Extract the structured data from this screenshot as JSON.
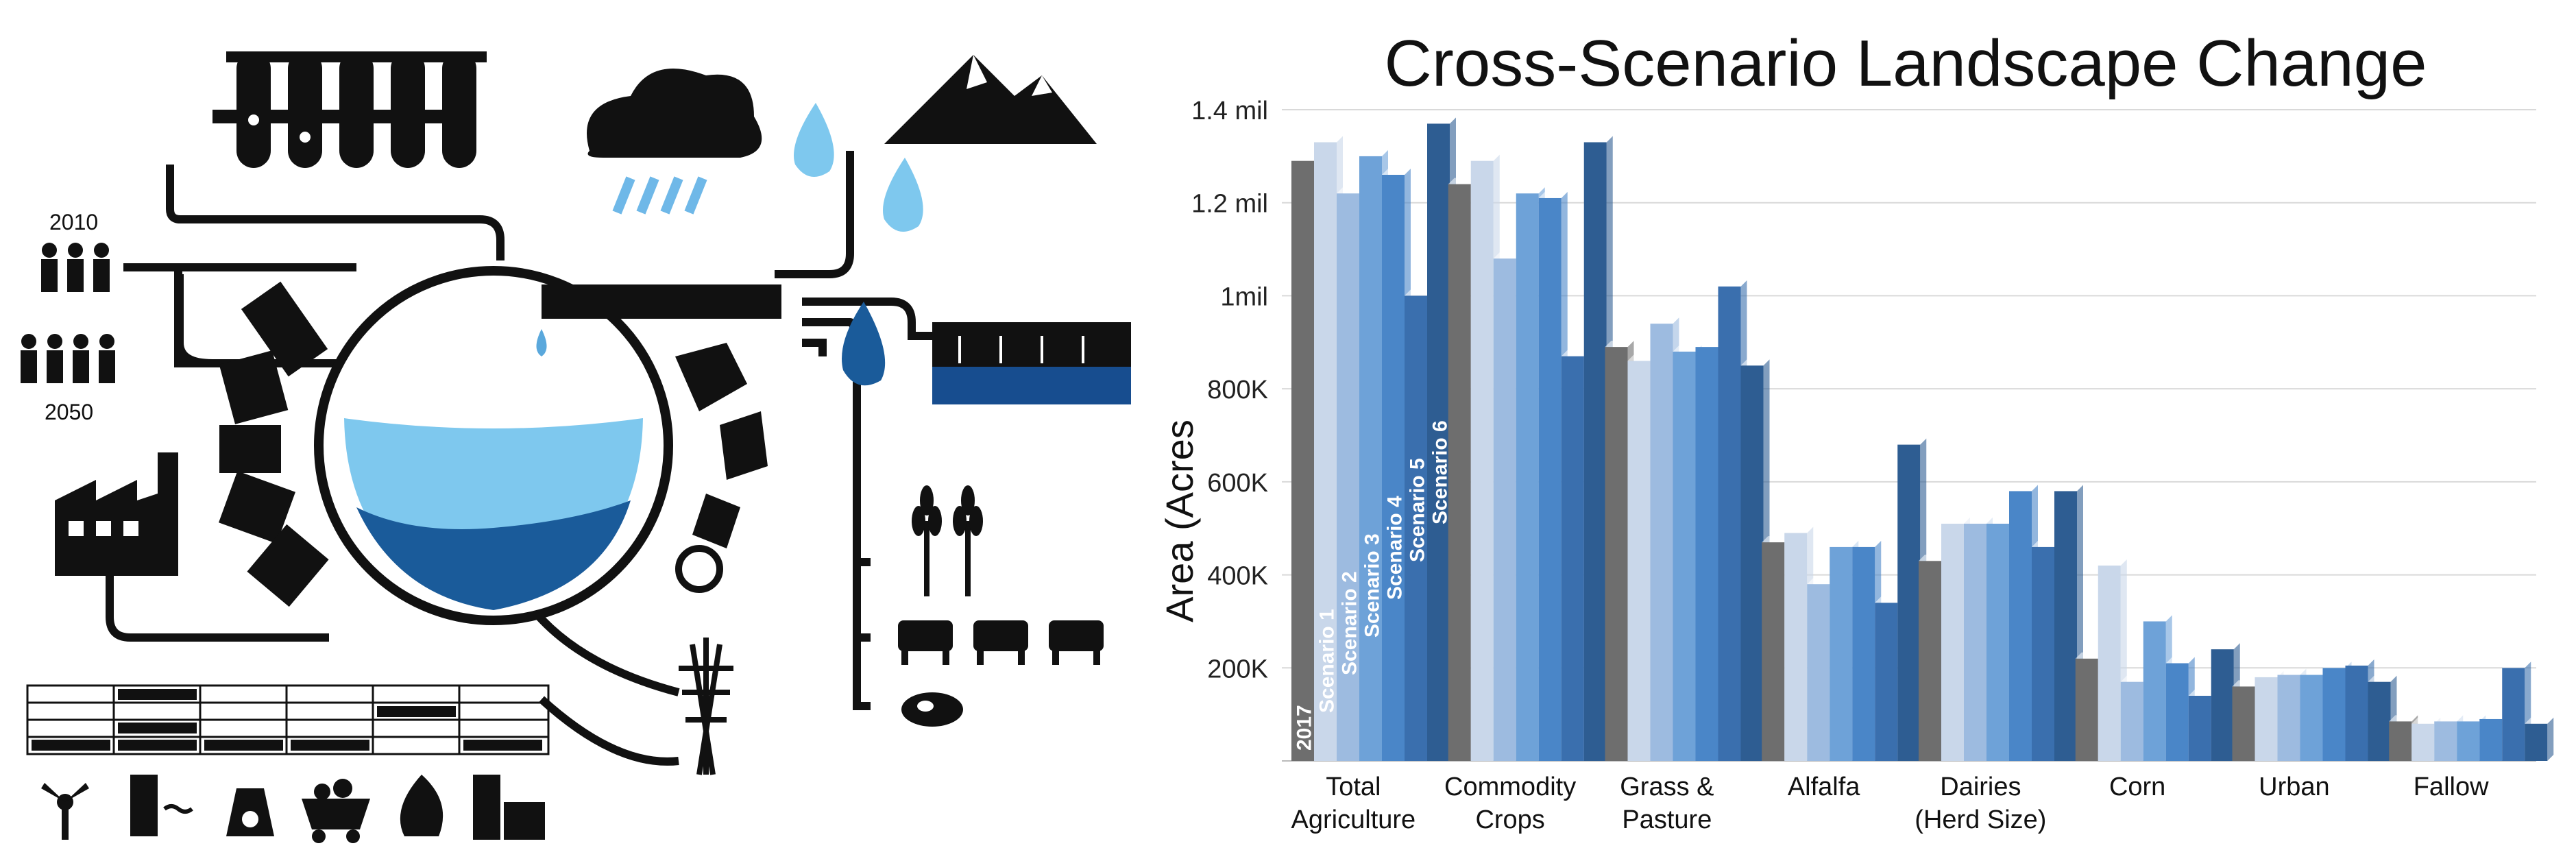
{
  "infographic": {
    "year_start": "2010",
    "year_end": "2050"
  },
  "chart_data": {
    "type": "bar",
    "title": "Cross-Scenario Landscape Change",
    "ylabel": "Area (Acres",
    "xlabel": "",
    "ylim": [
      0,
      1400000
    ],
    "y_ticks": [
      200000,
      400000,
      600000,
      800000,
      1000000,
      1200000,
      1400000
    ],
    "y_tick_labels": [
      "200K",
      "400K",
      "600K",
      "800K",
      "1mil",
      "1.2 mil",
      "1.4 mil"
    ],
    "grid": true,
    "categories": [
      [
        "Total",
        "Agriculture"
      ],
      [
        "Commodity",
        "Crops"
      ],
      [
        "Grass &",
        "Pasture"
      ],
      [
        "Alfalfa"
      ],
      [
        "Dairies",
        "(Herd Size)"
      ],
      [
        "Corn"
      ],
      [
        "Urban"
      ],
      [
        "Fallow"
      ]
    ],
    "series": [
      {
        "name": "2017",
        "color": "#6e6e6e",
        "values": [
          1290000,
          1240000,
          890000,
          470000,
          430000,
          220000,
          160000,
          85000
        ]
      },
      {
        "name": "Scenario 1",
        "color": "#c9d7ea",
        "values": [
          1330000,
          1290000,
          860000,
          490000,
          510000,
          420000,
          180000,
          80000
        ]
      },
      {
        "name": "Scenario 2",
        "color": "#9dbbe0",
        "values": [
          1220000,
          1080000,
          940000,
          380000,
          510000,
          170000,
          185000,
          85000
        ]
      },
      {
        "name": "Scenario 3",
        "color": "#6ea2d8",
        "values": [
          1300000,
          1220000,
          880000,
          460000,
          510000,
          300000,
          185000,
          85000
        ]
      },
      {
        "name": "Scenario 4",
        "color": "#4a86c8",
        "values": [
          1260000,
          1210000,
          890000,
          460000,
          580000,
          210000,
          200000,
          90000
        ]
      },
      {
        "name": "Scenario 5",
        "color": "#3a6fae",
        "values": [
          1000000,
          870000,
          1020000,
          340000,
          460000,
          140000,
          205000,
          200000
        ]
      },
      {
        "name": "Scenario 6",
        "color": "#2e5d92",
        "values": [
          1370000,
          1330000,
          850000,
          680000,
          580000,
          240000,
          170000,
          80000
        ]
      }
    ]
  }
}
